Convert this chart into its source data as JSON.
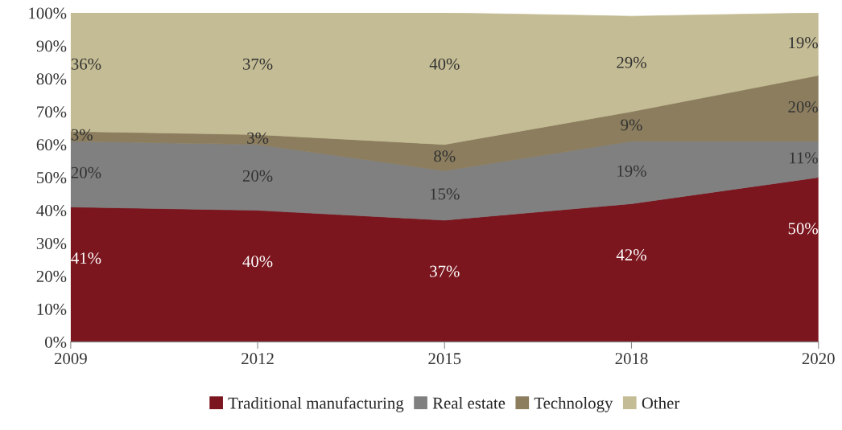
{
  "chart_data": {
    "type": "area",
    "stacked": true,
    "categories": [
      "2009",
      "2012",
      "2015",
      "2018",
      "2020"
    ],
    "series": [
      {
        "name": "Traditional manufacturing",
        "color": "#7b161e",
        "values": [
          41,
          40,
          37,
          42,
          50
        ],
        "value_labels": [
          "41%",
          "40%",
          "37%",
          "42%",
          "50%"
        ]
      },
      {
        "name": "Real estate",
        "color": "#808080",
        "values": [
          20,
          20,
          15,
          19,
          11
        ],
        "value_labels": [
          "20%",
          "20%",
          "15%",
          "19%",
          "11%"
        ]
      },
      {
        "name": "Technology",
        "color": "#8b7d5e",
        "values": [
          3,
          3,
          8,
          9,
          20
        ],
        "value_labels": [
          "3%",
          "3%",
          "8%",
          "9%",
          "20%"
        ]
      },
      {
        "name": "Other",
        "color": "#c4bc94",
        "values": [
          36,
          37,
          40,
          29,
          19
        ],
        "value_labels": [
          "36%",
          "37%",
          "40%",
          "29%",
          "19%"
        ]
      }
    ],
    "ylim": [
      0,
      100
    ],
    "yticks": [
      {
        "value": 0,
        "label": "0%"
      },
      {
        "value": 10,
        "label": "10%"
      },
      {
        "value": 20,
        "label": "20%"
      },
      {
        "value": 30,
        "label": "30%"
      },
      {
        "value": 40,
        "label": "40%"
      },
      {
        "value": 50,
        "label": "50%"
      },
      {
        "value": 60,
        "label": "60%"
      },
      {
        "value": 70,
        "label": "70%"
      },
      {
        "value": 80,
        "label": "80%"
      },
      {
        "value": 90,
        "label": "90%"
      },
      {
        "value": 100,
        "label": "100%"
      }
    ],
    "legend": "bottom",
    "grid": false
  }
}
